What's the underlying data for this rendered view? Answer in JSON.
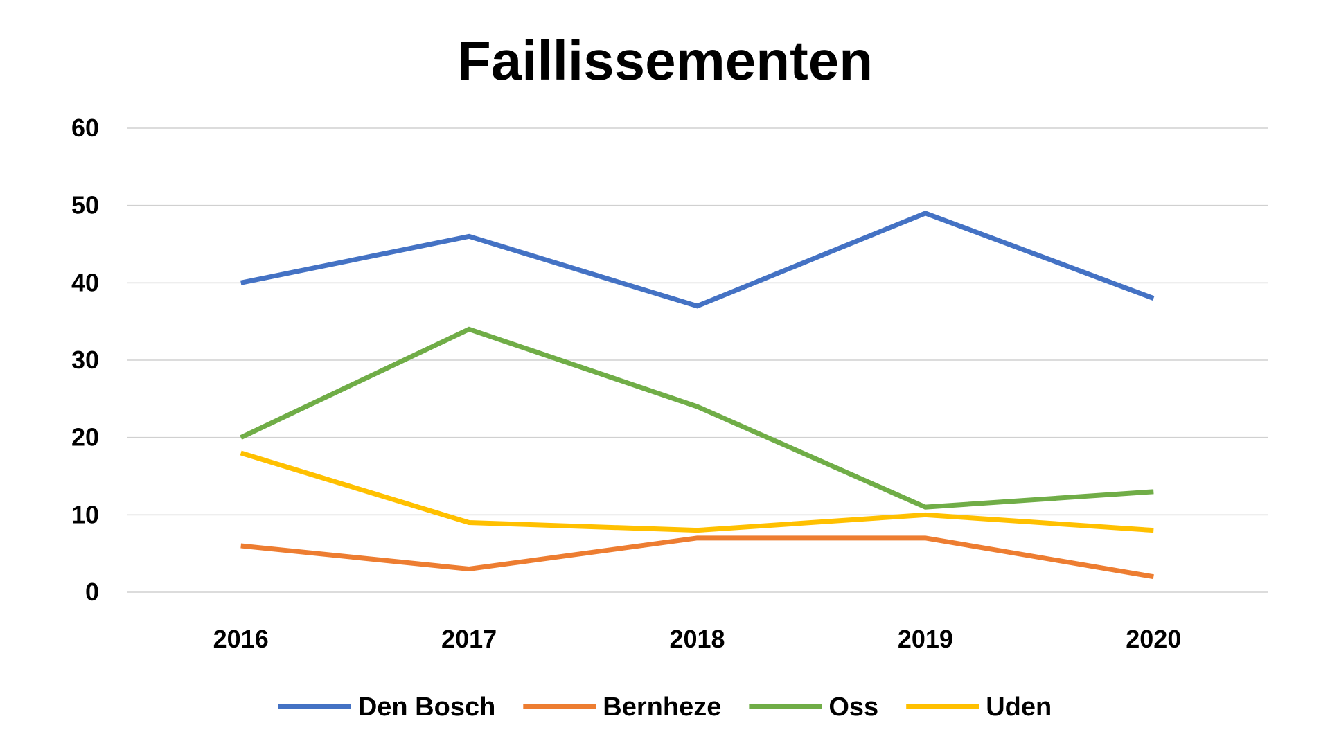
{
  "chart_data": {
    "type": "line",
    "title": "Faillissementen",
    "xlabel": "",
    "ylabel": "",
    "categories": [
      "2016",
      "2017",
      "2018",
      "2019",
      "2020"
    ],
    "ylim": [
      0,
      60
    ],
    "yticks": [
      0,
      10,
      20,
      30,
      40,
      50,
      60
    ],
    "grid": true,
    "legend_position": "bottom",
    "series": [
      {
        "name": "Den Bosch",
        "color": "#4472C4",
        "values": [
          40,
          46,
          37,
          49,
          38
        ]
      },
      {
        "name": "Bernheze",
        "color": "#ED7D31",
        "values": [
          6,
          3,
          7,
          7,
          2
        ]
      },
      {
        "name": "Oss",
        "color": "#70AD47",
        "values": [
          20,
          34,
          24,
          11,
          13
        ]
      },
      {
        "name": "Uden",
        "color": "#FFC000",
        "values": [
          18,
          9,
          8,
          10,
          8
        ]
      }
    ]
  }
}
